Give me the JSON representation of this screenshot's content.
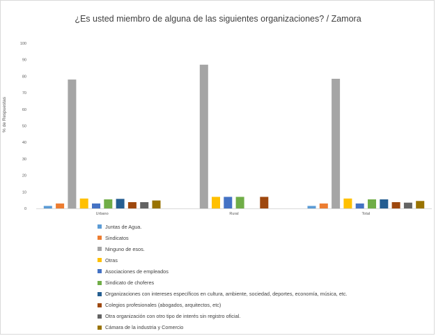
{
  "chart_data": {
    "type": "bar",
    "title": "¿Es usted miembro de alguna de las siguientes organizaciones? / Zamora",
    "ylabel": "% de Respuestas",
    "ylim": [
      0,
      100
    ],
    "yticks": [
      "0",
      "10",
      "20",
      "30",
      "40",
      "50",
      "60",
      "70",
      "80",
      "90",
      "100"
    ],
    "categories": [
      "Urbano",
      "Rural",
      "Total"
    ],
    "legend_position": "bottom",
    "series": [
      {
        "name": "Juntas de Agua.",
        "color": "#5b9bd5",
        "values": [
          1.5,
          0,
          1.5
        ]
      },
      {
        "name": "Sindicatos",
        "color": "#ed7d31",
        "values": [
          3,
          0,
          3
        ]
      },
      {
        "name": "Ninguno de esos.",
        "color": "#a5a5a5",
        "values": [
          78,
          87,
          78.5
        ]
      },
      {
        "name": "Otras",
        "color": "#ffc000",
        "values": [
          6,
          7,
          6
        ]
      },
      {
        "name": "Asociaciones de empleados",
        "color": "#4472c4",
        "values": [
          3,
          7,
          3
        ]
      },
      {
        "name": "Sindicato de choferes",
        "color": "#70ad47",
        "values": [
          5.5,
          7,
          5.5
        ]
      },
      {
        "name": "Organizaciones con intereses específicos en cultura, ambiente, sociedad, deportes, economía, música, etc.",
        "color": "#255e91",
        "values": [
          5.8,
          0,
          5.5
        ]
      },
      {
        "name": "Colegios profesionales (abogados, arquitectos, etc)",
        "color": "#9e480e",
        "values": [
          3.8,
          7,
          3.8
        ]
      },
      {
        "name": "Otra organización con otro tipo de interés sin registro oficial.",
        "color": "#636363",
        "values": [
          3.8,
          0,
          3.5
        ]
      },
      {
        "name": "Cámara de la industria y Comercio",
        "color": "#997300",
        "values": [
          4.8,
          0,
          4.5
        ]
      }
    ]
  }
}
